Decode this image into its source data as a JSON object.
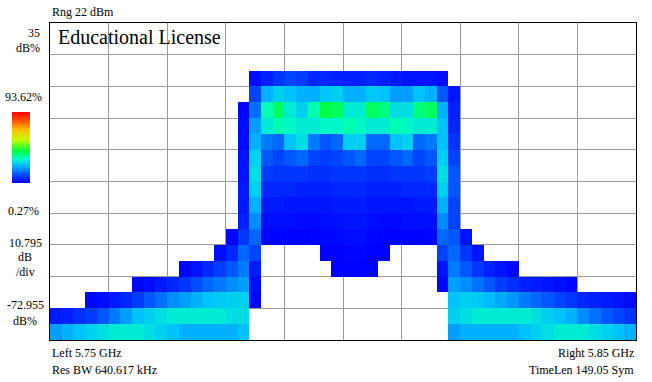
{
  "chart_data": {
    "type": "heatmap",
    "annotations": [
      "Rng 22 dBm",
      "Educational License",
      "35",
      "dB%",
      "10.795",
      "dB",
      "/div",
      "-72.955",
      "dB%",
      "Left 5.75 GHz",
      "Res BW 640.617 kHz",
      "Right 5.85 GHz",
      "TimeLen 149.05 Sym"
    ],
    "xlim": [
      5.75,
      5.85
    ],
    "xticks": [
      5.75,
      5.76,
      5.77,
      5.78,
      5.79,
      5.8,
      5.81,
      5.82,
      5.83,
      5.84,
      5.85
    ],
    "ylim": [
      -85.95,
      22
    ],
    "yticks": [
      -85.95,
      -75.155,
      -64.36,
      -53.565,
      -42.77,
      -31.975,
      -21.18,
      -10.385,
      0.41,
      11.205,
      22
    ],
    "grid": true,
    "tick_labels": false,
    "colorbar_range": [
      0.27,
      93.62
    ],
    "colorbar_ticks": [
      {
        "value": 0.27,
        "label": "0.27%"
      },
      {
        "value": 93.62,
        "label": "93.62%"
      }
    ],
    "x_bins": [
      5.75,
      5.752,
      5.754,
      5.756,
      5.758,
      5.76,
      5.762,
      5.764,
      5.766,
      5.768,
      5.77,
      5.772,
      5.774,
      5.776,
      5.778,
      5.78,
      5.782,
      5.784,
      5.786,
      5.788,
      5.79,
      5.792,
      5.794,
      5.796,
      5.798,
      5.8,
      5.802,
      5.804,
      5.806,
      5.808,
      5.81,
      5.812,
      5.814,
      5.816,
      5.818,
      5.82,
      5.822,
      5.824,
      5.826,
      5.828,
      5.83,
      5.832,
      5.834,
      5.836,
      5.838,
      5.84,
      5.842,
      5.844,
      5.846,
      5.848,
      5.85
    ],
    "y_bins": [
      -85.95,
      -80.5525,
      -75.155,
      -69.7575,
      -64.36,
      -58.9625,
      -53.565,
      -48.1675,
      -42.77,
      -37.3725,
      -31.975,
      -26.5775,
      -21.18,
      -15.7825,
      -10.385,
      -4.9875,
      0.41,
      5.8075,
      11.205,
      16.6025,
      22
    ],
    "z": [
      [
        20,
        22,
        24,
        26,
        28,
        30,
        30,
        30,
        28,
        26,
        24,
        22,
        22,
        22,
        22,
        22,
        24,
        null,
        null,
        null,
        null,
        null,
        null,
        null,
        null,
        null,
        null,
        null,
        null,
        null,
        null,
        null,
        null,
        null,
        20,
        22,
        22,
        22,
        22,
        22,
        24,
        26,
        28,
        30,
        30,
        30,
        28,
        26,
        24,
        22
      ],
      [
        4,
        5,
        7,
        9,
        12,
        16,
        20,
        24,
        26,
        28,
        30,
        30,
        30,
        30,
        30,
        28,
        28,
        null,
        null,
        null,
        null,
        null,
        null,
        null,
        null,
        null,
        null,
        null,
        null,
        null,
        null,
        null,
        null,
        null,
        26,
        28,
        30,
        30,
        30,
        30,
        30,
        28,
        26,
        24,
        22,
        18,
        15,
        12,
        10,
        8
      ],
      [
        null,
        null,
        null,
        1,
        2,
        4,
        6,
        9,
        12,
        15,
        18,
        20,
        22,
        24,
        25,
        26,
        26,
        1,
        null,
        null,
        null,
        null,
        null,
        null,
        null,
        null,
        null,
        null,
        null,
        null,
        null,
        null,
        null,
        null,
        24,
        26,
        25,
        23,
        21,
        19,
        16,
        14,
        12,
        10,
        8,
        6,
        5,
        4,
        3,
        2
      ],
      [
        null,
        null,
        null,
        null,
        null,
        null,
        null,
        1,
        2,
        4,
        6,
        8,
        11,
        14,
        16,
        18,
        20,
        2,
        null,
        null,
        null,
        null,
        null,
        null,
        null,
        null,
        null,
        null,
        null,
        null,
        null,
        null,
        null,
        1,
        20,
        18,
        15,
        12,
        9,
        7,
        5,
        4,
        3,
        2,
        1,
        null,
        null,
        null,
        null,
        null
      ],
      [
        null,
        null,
        null,
        null,
        null,
        null,
        null,
        null,
        null,
        null,
        null,
        1,
        3,
        6,
        9,
        12,
        16,
        4,
        null,
        null,
        null,
        null,
        null,
        null,
        0.4,
        0.6,
        0.6,
        0.4,
        null,
        null,
        null,
        null,
        null,
        3,
        16,
        12,
        8,
        5,
        3,
        1,
        null,
        null,
        null,
        null,
        null,
        null,
        null,
        null,
        null,
        null
      ],
      [
        null,
        null,
        null,
        null,
        null,
        null,
        null,
        null,
        null,
        null,
        null,
        null,
        null,
        null,
        2,
        6,
        14,
        10,
        null,
        null,
        null,
        null,
        null,
        0.5,
        0.8,
        1,
        1,
        0.6,
        0.4,
        null,
        null,
        null,
        null,
        10,
        14,
        8,
        3,
        null,
        null,
        null,
        null,
        null,
        null,
        null,
        null,
        null,
        null,
        null,
        null,
        null
      ],
      [
        null,
        null,
        null,
        null,
        null,
        null,
        null,
        null,
        null,
        null,
        null,
        null,
        null,
        null,
        null,
        1,
        8,
        14,
        1,
        0.8,
        0.6,
        0.6,
        0.8,
        1,
        1.5,
        2,
        2,
        1.2,
        0.8,
        0.6,
        0.6,
        0.8,
        1,
        14,
        12,
        3,
        null,
        null,
        null,
        null,
        null,
        null,
        null,
        null,
        null,
        null,
        null,
        null,
        null,
        null
      ],
      [
        null,
        null,
        null,
        null,
        null,
        null,
        null,
        null,
        null,
        null,
        null,
        null,
        null,
        null,
        null,
        null,
        5,
        18,
        2,
        2,
        2,
        1.5,
        1.5,
        2,
        2.5,
        3,
        3,
        2,
        1.5,
        1.5,
        2,
        2,
        2,
        18,
        10,
        null,
        null,
        null,
        null,
        null,
        null,
        null,
        null,
        null,
        null,
        null,
        null,
        null,
        null,
        null
      ],
      [
        null,
        null,
        null,
        null,
        null,
        null,
        null,
        null,
        null,
        null,
        null,
        null,
        null,
        null,
        null,
        null,
        4,
        22,
        4,
        4,
        3,
        3,
        3,
        3,
        4,
        4,
        4,
        3,
        3,
        3,
        3,
        4,
        4,
        22,
        10,
        null,
        null,
        null,
        null,
        null,
        null,
        null,
        null,
        null,
        null,
        null,
        null,
        null,
        null,
        null
      ],
      [
        null,
        null,
        null,
        null,
        null,
        null,
        null,
        null,
        null,
        null,
        null,
        null,
        null,
        null,
        null,
        null,
        4,
        26,
        6,
        6,
        6,
        5,
        5,
        5,
        6,
        6,
        6,
        5,
        5,
        5,
        6,
        6,
        6,
        26,
        12,
        null,
        null,
        null,
        null,
        null,
        null,
        null,
        null,
        null,
        null,
        null,
        null,
        null,
        null,
        null
      ],
      [
        null,
        null,
        null,
        null,
        null,
        null,
        null,
        null,
        null,
        null,
        null,
        null,
        null,
        null,
        null,
        null,
        3,
        28,
        9,
        8,
        8,
        8,
        7,
        7,
        8,
        8,
        8,
        7,
        7,
        8,
        8,
        8,
        9,
        28,
        12,
        null,
        null,
        null,
        null,
        null,
        null,
        null,
        null,
        null,
        null,
        null,
        null,
        null,
        null,
        null
      ],
      [
        null,
        null,
        null,
        null,
        null,
        null,
        null,
        null,
        null,
        null,
        null,
        null,
        null,
        null,
        null,
        null,
        3,
        26,
        12,
        10,
        12,
        14,
        10,
        9,
        10,
        12,
        14,
        10,
        10,
        12,
        14,
        10,
        12,
        26,
        10,
        null,
        null,
        null,
        null,
        null,
        null,
        null,
        null,
        null,
        null,
        null,
        null,
        null,
        null,
        null
      ],
      [
        null,
        null,
        null,
        null,
        null,
        null,
        null,
        null,
        null,
        null,
        null,
        null,
        null,
        null,
        null,
        null,
        2,
        22,
        16,
        14,
        24,
        28,
        16,
        12,
        14,
        26,
        26,
        14,
        14,
        24,
        26,
        14,
        16,
        24,
        8,
        null,
        null,
        null,
        null,
        null,
        null,
        null,
        null,
        null,
        null,
        null,
        null,
        null,
        null,
        null
      ],
      [
        null,
        null,
        null,
        null,
        null,
        null,
        null,
        null,
        null,
        null,
        null,
        null,
        null,
        null,
        null,
        null,
        2,
        20,
        30,
        34,
        32,
        30,
        30,
        32,
        32,
        34,
        32,
        30,
        30,
        34,
        32,
        30,
        30,
        24,
        6,
        null,
        null,
        null,
        null,
        null,
        null,
        null,
        null,
        null,
        null,
        null,
        null,
        null,
        null,
        null
      ],
      [
        null,
        null,
        null,
        null,
        null,
        null,
        null,
        null,
        null,
        null,
        null,
        null,
        null,
        null,
        null,
        null,
        1,
        15,
        34,
        40,
        30,
        26,
        34,
        42,
        40,
        30,
        30,
        40,
        38,
        28,
        28,
        38,
        40,
        22,
        5,
        null,
        null,
        null,
        null,
        null,
        null,
        null,
        null,
        null,
        null,
        null,
        null,
        null,
        null,
        null
      ],
      [
        null,
        null,
        null,
        null,
        null,
        null,
        null,
        null,
        null,
        null,
        null,
        null,
        null,
        null,
        null,
        null,
        null,
        10,
        22,
        26,
        24,
        22,
        22,
        25,
        26,
        22,
        22,
        25,
        24,
        20,
        20,
        24,
        22,
        12,
        3,
        null,
        null,
        null,
        null,
        null,
        null,
        null,
        null,
        null,
        null,
        null,
        null,
        null,
        null,
        null
      ],
      [
        null,
        null,
        null,
        null,
        null,
        null,
        null,
        null,
        null,
        null,
        null,
        null,
        null,
        null,
        null,
        null,
        null,
        2,
        5,
        8,
        10,
        9,
        6,
        6,
        5,
        5,
        5,
        6,
        5,
        4,
        3,
        3,
        3,
        2,
        null,
        null,
        null,
        null,
        null,
        null,
        null,
        null,
        null,
        null,
        null,
        null,
        null,
        null,
        null,
        null
      ],
      [
        null,
        null,
        null,
        null,
        null,
        null,
        null,
        null,
        null,
        null,
        null,
        null,
        null,
        null,
        null,
        null,
        null,
        null,
        null,
        null,
        null,
        null,
        null,
        null,
        null,
        null,
        null,
        null,
        null,
        null,
        null,
        null,
        null,
        null,
        null,
        null,
        null,
        null,
        null,
        null,
        null,
        null,
        null,
        null,
        null,
        null,
        null,
        null,
        null,
        null
      ],
      [
        null,
        null,
        null,
        null,
        null,
        null,
        null,
        null,
        null,
        null,
        null,
        null,
        null,
        null,
        null,
        null,
        null,
        null,
        null,
        null,
        null,
        null,
        null,
        null,
        null,
        null,
        null,
        null,
        null,
        null,
        null,
        null,
        null,
        null,
        null,
        null,
        null,
        null,
        null,
        null,
        null,
        null,
        null,
        null,
        null,
        null,
        null,
        null,
        null,
        null
      ],
      [
        null,
        null,
        null,
        null,
        null,
        null,
        null,
        null,
        null,
        null,
        null,
        null,
        null,
        null,
        null,
        null,
        null,
        null,
        null,
        null,
        null,
        null,
        null,
        null,
        null,
        null,
        null,
        null,
        null,
        null,
        null,
        null,
        null,
        null,
        null,
        null,
        null,
        null,
        null,
        null,
        null,
        null,
        null,
        null,
        null,
        null,
        null,
        null,
        null,
        null
      ]
    ]
  }
}
